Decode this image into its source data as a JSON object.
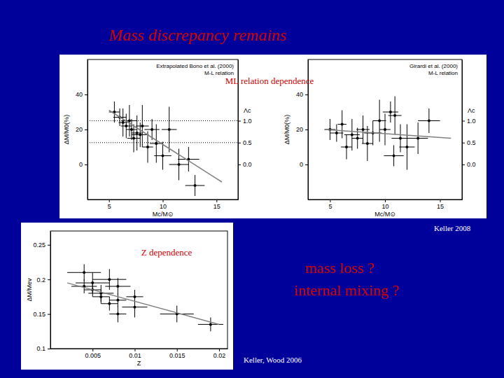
{
  "title": "Mass discrepancy remains",
  "annotations": [
    "ML relation dependence",
    "Z dependence",
    "mass loss ?",
    "internal mixing ?"
  ],
  "credits": [
    "Keller 2008",
    "Keller, Wood 2006"
  ],
  "chart_data": [
    {
      "type": "scatter",
      "annotations": [
        "Extrapolated Bono et al. (2000)",
        "M-L relation"
      ],
      "x_label": "Mc/M⊙",
      "y_label": "ΔM/M0(%)",
      "y2_label": "Λc",
      "xlim": [
        3,
        17
      ],
      "xticks": [
        5,
        10,
        15
      ],
      "ylim": [
        -20,
        60
      ],
      "yticks": [
        0,
        20,
        40
      ],
      "y2lim": [
        -0.8,
        2.4
      ],
      "y2ticks": [
        {
          "value": 0,
          "label": "0.0"
        },
        0.5,
        {
          "value": 1,
          "label": "1.0"
        }
      ],
      "hlines": [
        25,
        12.5
      ],
      "series": [
        {
          "type": "scatter",
          "color": "#000000",
          "x": [
            5.5,
            6.0,
            6.3,
            6.6,
            6.9,
            7.1,
            7.3,
            7.6,
            7.9,
            8.1,
            8.6,
            9.0,
            9.4,
            10.0,
            10.6,
            11.5,
            12.4,
            13.0
          ],
          "values": [
            30,
            27,
            24,
            22,
            25,
            20,
            15,
            18,
            17,
            22,
            10,
            20,
            12,
            5,
            20,
            0,
            3,
            -12
          ],
          "x_error": [
            0.5,
            0.6,
            0.4,
            0.5,
            0.7,
            0.5,
            0.6,
            0.5,
            0.8,
            0.6,
            0.5,
            0.7,
            0.6,
            0.8,
            0.7,
            0.9,
            1.0,
            0.9
          ],
          "y_error": [
            6,
            5,
            8,
            7,
            9,
            6,
            8,
            10,
            7,
            12,
            9,
            6,
            11,
            8,
            13,
            9,
            7,
            6
          ]
        },
        {
          "type": "line",
          "color": "#808080",
          "x": [
            5,
            15.5
          ],
          "values": [
            31,
            -10
          ]
        }
      ]
    },
    {
      "type": "scatter",
      "annotations": [
        "Girardi et al. (2000)",
        "M-L relation"
      ],
      "x_label": "Mc/M⊙",
      "y_label": "ΔM/M0(%)",
      "y2_label": "Λc",
      "xlim": [
        3,
        17
      ],
      "xticks": [
        5,
        10,
        15
      ],
      "ylim": [
        -20,
        60
      ],
      "yticks": [
        0,
        20,
        40
      ],
      "y2lim": [
        -0.8,
        2.4
      ],
      "y2ticks": [
        {
          "value": 0,
          "label": "0.0"
        },
        0.5,
        {
          "value": 1,
          "label": "1.0"
        }
      ],
      "series": [
        {
          "type": "scatter",
          "color": "#000000",
          "x": [
            5.0,
            5.6,
            6.1,
            6.5,
            7.0,
            7.5,
            8.0,
            8.4,
            8.9,
            9.5,
            10.0,
            10.5,
            10.9,
            11.4,
            12.0,
            13.0,
            14.0,
            10.8
          ],
          "values": [
            20,
            18,
            23,
            10,
            17,
            15,
            20,
            12,
            18,
            25,
            20,
            30,
            28,
            15,
            10,
            15,
            25,
            5
          ],
          "x_error": [
            0.5,
            0.6,
            0.4,
            0.5,
            0.7,
            0.5,
            0.6,
            0.5,
            0.8,
            0.6,
            0.5,
            0.7,
            0.6,
            0.8,
            0.7,
            0.9,
            1.0,
            0.9
          ],
          "y_error": [
            6,
            5,
            8,
            7,
            9,
            6,
            8,
            10,
            7,
            12,
            9,
            6,
            11,
            8,
            13,
            9,
            7,
            6
          ]
        },
        {
          "type": "line",
          "color": "#808080",
          "x": [
            4.5,
            16
          ],
          "values": [
            20,
            15
          ]
        }
      ]
    },
    {
      "type": "scatter",
      "x_label": "Z",
      "y_label": "ΔM/Mev",
      "xlim": [
        0,
        0.021
      ],
      "xticks": [
        0.005,
        0.01,
        0.015,
        0.02
      ],
      "ylim": [
        0.1,
        0.27
      ],
      "yticks": [
        0.1,
        0.15,
        0.2,
        0.25
      ],
      "series": [
        {
          "type": "scatter",
          "color": "#000000",
          "x": [
            0.004,
            0.004,
            0.005,
            0.005,
            0.006,
            0.006,
            0.007,
            0.007,
            0.008,
            0.008,
            0.008,
            0.01,
            0.01,
            0.015,
            0.019
          ],
          "values": [
            0.21,
            0.19,
            0.195,
            0.185,
            0.18,
            0.175,
            0.2,
            0.165,
            0.19,
            0.17,
            0.15,
            0.16,
            0.175,
            0.15,
            0.135
          ],
          "x_error": [
            0.002,
            0.0015,
            0.002,
            0.001,
            0.0015,
            0.001,
            0.002,
            0.001,
            0.0015,
            0.001,
            0.001,
            0.0015,
            0.001,
            0.002,
            0.0015
          ],
          "y_error": [
            0.012,
            0.01,
            0.015,
            0.01,
            0.012,
            0.01,
            0.015,
            0.01,
            0.012,
            0.01,
            0.012,
            0.015,
            0.01,
            0.012,
            0.01
          ]
        },
        {
          "type": "line",
          "color": "#808080",
          "x": [
            0.002,
            0.02
          ],
          "values": [
            0.195,
            0.135
          ]
        }
      ]
    }
  ]
}
